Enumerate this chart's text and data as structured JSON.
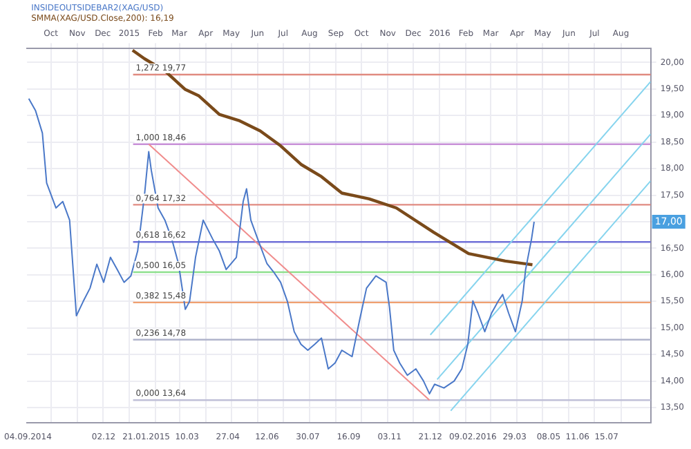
{
  "chart_data": {
    "type": "line",
    "legend": "top left",
    "grid": true,
    "marker": "none",
    "line_style": "solid",
    "xlim": [
      "2014-09-03",
      "2016-09-05"
    ],
    "xticks": [
      {
        "value": "2014-09-04",
        "label": "04.09.2014"
      },
      {
        "value": "2014-12-02",
        "label": "02.12"
      },
      {
        "value": "2015-01-21",
        "label": "21.01.2015"
      },
      {
        "value": "2015-03-10",
        "label": "10.03"
      },
      {
        "value": "2015-04-27",
        "label": "27.04"
      },
      {
        "value": "2015-06-12",
        "label": "12.06"
      },
      {
        "value": "2015-07-30",
        "label": "30.07"
      },
      {
        "value": "2015-09-16",
        "label": "16.09"
      },
      {
        "value": "2015-11-03",
        "label": "03.11"
      },
      {
        "value": "2015-12-21",
        "label": "21.12"
      },
      {
        "value": "2016-02-09",
        "label": "09.02.2016"
      },
      {
        "value": "2016-03-29",
        "label": "29.03"
      },
      {
        "value": "2016-05-08",
        "label": "08.05"
      },
      {
        "value": "2016-06-11",
        "label": "11.06"
      },
      {
        "value": "2016-07-15",
        "label": "15.07"
      }
    ],
    "x2lim": [
      "2014-09-03",
      "2016-09-05"
    ],
    "x2ticks": [
      {
        "value": "2014-10-01",
        "label": "Oct"
      },
      {
        "value": "2014-11-01",
        "label": "Nov"
      },
      {
        "value": "2014-12-01",
        "label": "Dec"
      },
      {
        "value": "2015-01-01",
        "label": "2015"
      },
      {
        "value": "2015-02-01",
        "label": "Feb"
      },
      {
        "value": "2015-03-01",
        "label": "Mar"
      },
      {
        "value": "2015-04-01",
        "label": "Apr"
      },
      {
        "value": "2015-05-01",
        "label": "May"
      },
      {
        "value": "2015-06-01",
        "label": "Jun"
      },
      {
        "value": "2015-07-01",
        "label": "Jul"
      },
      {
        "value": "2015-08-01",
        "label": "Aug"
      },
      {
        "value": "2015-09-01",
        "label": "Sep"
      },
      {
        "value": "2015-10-01",
        "label": "Oct"
      },
      {
        "value": "2015-11-01",
        "label": "Nov"
      },
      {
        "value": "2015-12-01",
        "label": "Dec"
      },
      {
        "value": "2016-01-01",
        "label": "2016"
      },
      {
        "value": "2016-02-01",
        "label": "Feb"
      },
      {
        "value": "2016-03-01",
        "label": "Mar"
      },
      {
        "value": "2016-04-01",
        "label": "Apr"
      },
      {
        "value": "2016-05-01",
        "label": "May"
      },
      {
        "value": "2016-06-01",
        "label": "Jun"
      },
      {
        "value": "2016-07-01",
        "label": "Jul"
      },
      {
        "value": "2016-08-01",
        "label": "Aug"
      }
    ],
    "ylim": [
      13.22,
      20.26
    ],
    "yticks": [
      {
        "value": 13.5,
        "label": "13,50"
      },
      {
        "value": 14,
        "label": "14,00"
      },
      {
        "value": 14.5,
        "label": "14,50"
      },
      {
        "value": 15,
        "label": "15,00"
      },
      {
        "value": 15.5,
        "label": "15,50"
      },
      {
        "value": 16,
        "label": "16,00"
      },
      {
        "value": 16.5,
        "label": "16,50"
      },
      {
        "value": 17,
        "label": null
      },
      {
        "value": 17.5,
        "label": "17,50"
      },
      {
        "value": 18,
        "label": "18,00"
      },
      {
        "value": 18.5,
        "label": "18,50"
      },
      {
        "value": 19,
        "label": "19,00"
      },
      {
        "value": 19.5,
        "label": "19,50"
      },
      {
        "value": 20,
        "label": "20,00"
      }
    ],
    "series": [
      {
        "name": "INSIDEOUTSIDEBAR2(XAG/USD)",
        "color": "#4a78c8",
        "x": [
          "2014-09-05",
          "2014-09-13",
          "2014-09-21",
          "2014-09-26",
          "2014-10-07",
          "2014-10-15",
          "2014-10-23",
          "2014-10-31",
          "2014-11-08",
          "2014-11-16",
          "2014-11-24",
          "2014-12-02",
          "2014-12-10",
          "2014-12-18",
          "2014-12-26",
          "2015-01-03",
          "2015-01-11",
          "2015-01-19",
          "2015-01-24",
          "2015-01-27",
          "2015-02-04",
          "2015-02-12",
          "2015-02-20",
          "2015-02-28",
          "2015-03-08",
          "2015-03-13",
          "2015-03-20",
          "2015-03-29",
          "2015-04-09",
          "2015-04-17",
          "2015-04-25",
          "2015-05-07",
          "2015-05-15",
          "2015-05-19",
          "2015-05-24",
          "2015-06-01",
          "2015-06-12",
          "2015-06-20",
          "2015-06-28",
          "2015-07-06",
          "2015-07-14",
          "2015-07-22",
          "2015-07-30",
          "2015-08-07",
          "2015-08-15",
          "2015-08-23",
          "2015-08-31",
          "2015-09-08",
          "2015-09-20",
          "2015-09-29",
          "2015-10-07",
          "2015-10-18",
          "2015-10-30",
          "2015-11-03",
          "2015-11-08",
          "2015-11-15",
          "2015-11-24",
          "2015-12-04",
          "2015-12-13",
          "2015-12-20",
          "2015-12-26",
          "2016-01-06",
          "2016-01-18",
          "2016-01-27",
          "2016-02-03",
          "2016-02-09",
          "2016-02-15",
          "2016-02-23",
          "2016-03-02",
          "2016-03-10",
          "2016-03-15",
          "2016-03-22",
          "2016-03-30",
          "2016-04-07",
          "2016-04-11",
          "2016-04-18",
          "2016-04-21"
        ],
        "values": [
          19.32,
          19.09,
          18.67,
          17.73,
          17.26,
          17.38,
          17.03,
          15.23,
          15.5,
          15.75,
          16.2,
          15.86,
          16.33,
          16.1,
          15.86,
          15.98,
          16.45,
          17.5,
          18.32,
          17.97,
          17.26,
          17.03,
          16.68,
          16.21,
          15.35,
          15.5,
          16.33,
          17.03,
          16.68,
          16.45,
          16.1,
          16.33,
          17.38,
          17.62,
          17.03,
          16.68,
          16.21,
          16.05,
          15.86,
          15.5,
          14.93,
          14.69,
          14.58,
          14.69,
          14.81,
          14.23,
          14.34,
          14.58,
          14.46,
          15.16,
          15.75,
          15.98,
          15.86,
          15.39,
          14.58,
          14.34,
          14.11,
          14.23,
          14.0,
          13.76,
          13.94,
          13.87,
          14.0,
          14.23,
          14.69,
          15.51,
          15.28,
          14.93,
          15.28,
          15.51,
          15.63,
          15.28,
          14.93,
          15.51,
          16.1,
          16.68,
          17.0
        ]
      },
      {
        "name": "SMMA(XAG/USD.Close,200): 16,19",
        "color": "#7a4a1a",
        "x": [
          "2015-01-05",
          "2015-01-19",
          "2015-02-12",
          "2015-03-08",
          "2015-03-24",
          "2015-04-17",
          "2015-05-11",
          "2015-06-04",
          "2015-06-28",
          "2015-07-22",
          "2015-08-15",
          "2015-09-08",
          "2015-10-10",
          "2015-11-11",
          "2015-12-25",
          "2016-02-04",
          "2016-03-18",
          "2016-04-19"
        ],
        "values": [
          20.23,
          20.07,
          19.84,
          19.49,
          19.37,
          19.02,
          18.9,
          18.71,
          18.43,
          18.08,
          17.85,
          17.54,
          17.43,
          17.26,
          16.8,
          16.4,
          16.26,
          16.19
        ]
      },
      {
        "color": "#f08c8c",
        "x": [
          "2015-01-24",
          "2015-12-20"
        ],
        "values": [
          18.46,
          13.64
        ]
      },
      {
        "color": "#86d4ee",
        "x": [
          "2015-12-21",
          "2016-09-05"
        ],
        "values": [
          14.87,
          19.64
        ]
      },
      {
        "color": "#86d4ee",
        "x": [
          "2015-12-29",
          "2016-09-05"
        ],
        "values": [
          14.03,
          18.65
        ]
      },
      {
        "color": "#86d4ee",
        "x": [
          "2016-01-14",
          "2016-09-05"
        ],
        "values": [
          13.44,
          17.77
        ]
      }
    ],
    "ref_lines": [
      {
        "axis": "y",
        "value": 19.77,
        "label": "1,272 19,77",
        "color": "#e08a80"
      },
      {
        "axis": "y",
        "value": 18.46,
        "label": "1,000 18,46",
        "color": "#c890d8"
      },
      {
        "axis": "y",
        "value": 17.32,
        "label": "0,764 17,32",
        "color": "#e08a80"
      },
      {
        "axis": "y",
        "value": 16.62,
        "label": "0,618 16,62",
        "color": "#7070d8"
      },
      {
        "axis": "y",
        "value": 16.05,
        "label": "0,500 16,05",
        "color": "#8ee08e"
      },
      {
        "axis": "y",
        "value": 15.48,
        "label": "0,382 15,48",
        "color": "#f0a070"
      },
      {
        "axis": "y",
        "value": 14.78,
        "label": "0,236 14,78",
        "color": "#b0b4cc"
      },
      {
        "axis": "y",
        "value": 13.64,
        "label": "0,000 13,64",
        "color": "#c0c0d8"
      }
    ],
    "annotations": [
      {
        "text": "17,00",
        "y": 17.0
      }
    ]
  }
}
